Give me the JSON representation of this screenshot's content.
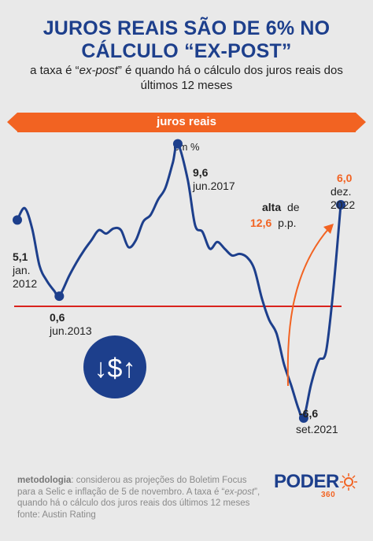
{
  "header": {
    "title_line1": "JUROS REAIS SÃO DE 6% NO",
    "title_line2": "CÁLCULO “EX-POST”",
    "subtitle_line1_a": "a taxa é “",
    "subtitle_line1_b": "ex-post",
    "subtitle_line1_c": "” é quando há o cálculo dos juros reais dos",
    "subtitle_line2": "últimos 12 meses"
  },
  "banner": {
    "label": "juros reais"
  },
  "unit_label": "em %",
  "colors": {
    "title": "#1d3f8c",
    "accent": "#f26322",
    "line": "#1d3f8c",
    "reference": "#d9231d",
    "background": "#e9e9e9"
  },
  "icon": {
    "name": "money-exchange-icon",
    "text": "↓$↑"
  },
  "annotations": {
    "start": {
      "value": "5,1",
      "month": "jan.",
      "year": "2012"
    },
    "low2013": {
      "value": "0,6",
      "date": "jun.2013"
    },
    "peak2017": {
      "value": "9,6",
      "date": "jun.2017"
    },
    "low2021": {
      "value": "-6,6",
      "date": "set.2021"
    },
    "end": {
      "value": "6,0",
      "month": "dez.",
      "year": "2022"
    },
    "change": {
      "word": "alta",
      "de": "de",
      "value": "12,6",
      "unit": "p.p."
    }
  },
  "chart_data": {
    "type": "line",
    "title": "juros reais",
    "ylabel": "em %",
    "reference_line": 0,
    "series": [
      {
        "x": [
          "2012-01",
          "2012-04",
          "2012-07",
          "2012-10",
          "2013-01",
          "2013-04",
          "2013-06",
          "2013-10",
          "2014-01",
          "2014-04",
          "2014-07",
          "2014-10",
          "2015-01",
          "2015-04",
          "2015-07",
          "2015-10",
          "2016-01",
          "2016-04",
          "2016-07",
          "2016-10",
          "2017-01",
          "2017-04",
          "2017-06",
          "2017-10",
          "2018-01",
          "2018-04",
          "2018-07",
          "2018-10",
          "2019-01",
          "2019-04",
          "2019-07",
          "2019-10",
          "2020-01",
          "2020-04",
          "2020-07",
          "2020-10",
          "2021-01",
          "2021-04",
          "2021-07",
          "2021-09",
          "2021-12",
          "2022-03",
          "2022-06",
          "2022-09",
          "2022-12"
        ],
        "values": [
          5.1,
          5.8,
          4.6,
          2.4,
          1.5,
          0.9,
          0.6,
          1.8,
          2.6,
          3.3,
          3.9,
          4.5,
          4.3,
          4.6,
          4.5,
          3.5,
          3.9,
          5.0,
          5.4,
          6.3,
          7.0,
          8.5,
          9.6,
          7.5,
          4.8,
          4.4,
          3.4,
          3.8,
          3.4,
          3.0,
          3.1,
          2.9,
          2.2,
          0.5,
          -0.8,
          -1.6,
          -3.4,
          -4.7,
          -6.1,
          -6.6,
          -4.6,
          -3.2,
          -2.7,
          1.0,
          6.0
        ]
      }
    ]
  },
  "footer": {
    "label": "metodologia",
    "text1": ": considerou as projeções do Boletim Focus para a Selic e inflação de 5 de novembro. A taxa é “",
    "text_italic": "ex-post",
    "text2": "”, quando há o cálculo dos juros reais dos últimos 12 meses",
    "source": "fonte: Austin Rating"
  },
  "logo": {
    "name": "PODER",
    "sub": "360"
  }
}
